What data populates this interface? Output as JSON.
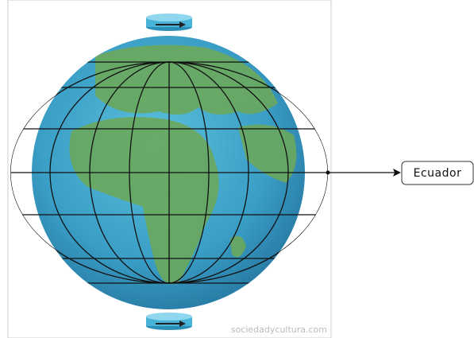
{
  "label": "Ecuador",
  "watermark": "sociedadycultura.com"
}
